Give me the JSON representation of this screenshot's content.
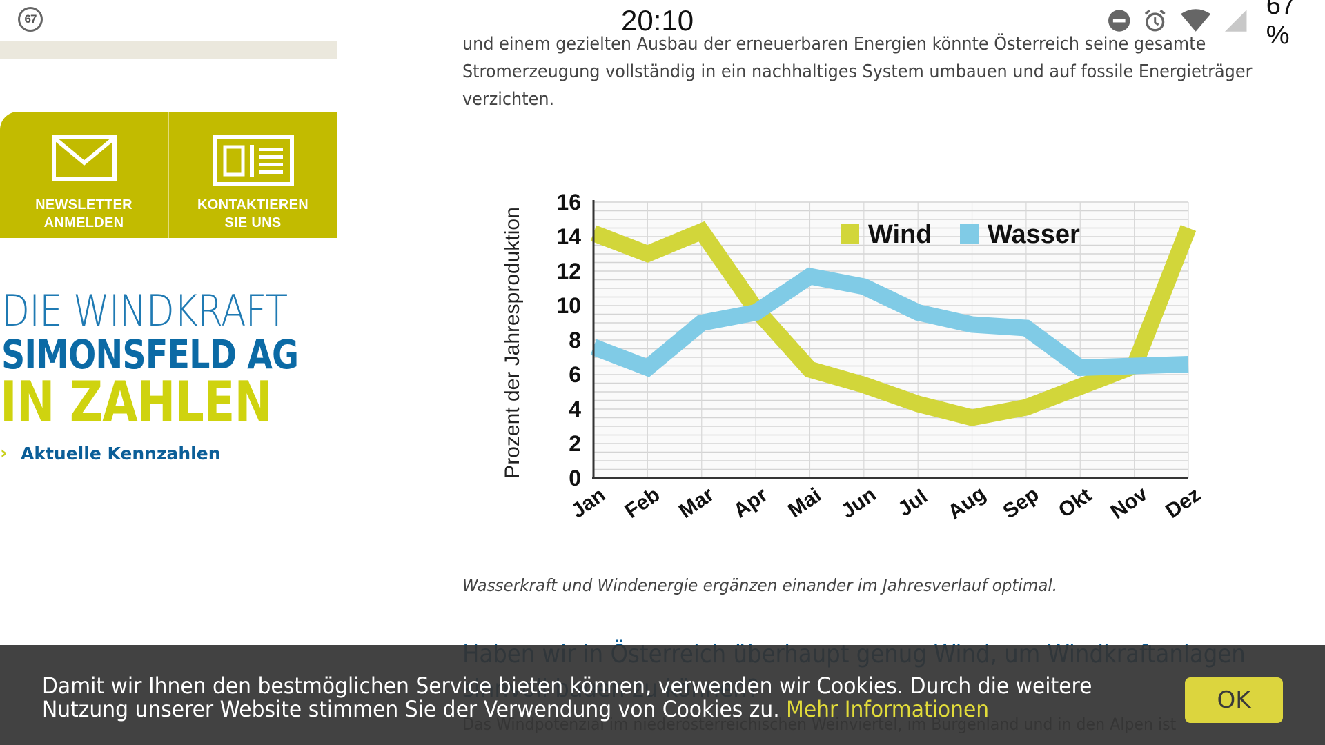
{
  "status_bar": {
    "notification_count": "67",
    "time": "20:10",
    "battery": "67 %",
    "icons": [
      "do-not-disturb-icon",
      "alarm-icon",
      "wifi-icon",
      "cell-signal-icon"
    ]
  },
  "sidebar": {
    "cta_buttons": [
      {
        "icon": "envelope-icon",
        "line1": "NEWSLETTER",
        "line2": "ANMELDEN"
      },
      {
        "icon": "contact-card-icon",
        "line1": "KONTAKTIEREN",
        "line2": "SIE UNS"
      }
    ],
    "logo": {
      "line1": "DIE WINDKRAFT",
      "line2": "SIMONSFELD AG",
      "line3": "IN ZAHLEN"
    },
    "link": {
      "chevron": "›",
      "label": "Aktuelle Kennzahlen"
    }
  },
  "article": {
    "paragraph_lines": [
      "und einem gezielten Ausbau der erneuerbaren Energien könnte Österreich seine gesamte",
      "Stromerzeugung vollständig in ein nachhaltiges System umbauen und auf fossile Energieträger",
      "verzichten."
    ],
    "caption": "Wasserkraft und Windenergie ergänzen einander im Jahresverlauf optimal.",
    "heading_lines": [
      "Haben wir in Österreich überhaupt genug Wind, um Windkraftanlagen",
      "sinnvoll bauen zu können?"
    ],
    "next_paragraph": "Das Windpotenzial im niederösterreichischen Weinviertel, im Burgenland und in den Alpen ist"
  },
  "chart_data": {
    "type": "line",
    "title": "",
    "xlabel": "",
    "ylabel": "Prozent der Jahresproduktion",
    "categories": [
      "Jan",
      "Feb",
      "Mar",
      "Apr",
      "Mai",
      "Jun",
      "Jul",
      "Aug",
      "Sep",
      "Okt",
      "Nov",
      "Dez"
    ],
    "ylim": [
      0,
      16
    ],
    "yticks": [
      0,
      2,
      4,
      6,
      8,
      10,
      12,
      14,
      16
    ],
    "grid": true,
    "legend_position": "top-center",
    "series": [
      {
        "name": "Wind",
        "color": "#d2d63a",
        "values": [
          14.2,
          13.0,
          14.3,
          9.8,
          6.3,
          5.4,
          4.3,
          3.5,
          4.1,
          5.3,
          6.5,
          14.5
        ]
      },
      {
        "name": "Wasser",
        "color": "#80cbe6",
        "values": [
          7.6,
          6.4,
          9.0,
          9.6,
          11.7,
          11.1,
          9.6,
          8.9,
          8.7,
          6.4,
          6.5,
          6.6
        ]
      }
    ]
  },
  "cookie_banner": {
    "line1": "Damit wir Ihnen den bestmöglichen Service bieten können, verwenden wir Cookies. Durch die weitere",
    "line2": "Nutzung unserer Website stimmen Sie der Verwendung von Cookies zu.",
    "more_link": "Mehr Informationen",
    "ok_label": "OK"
  }
}
